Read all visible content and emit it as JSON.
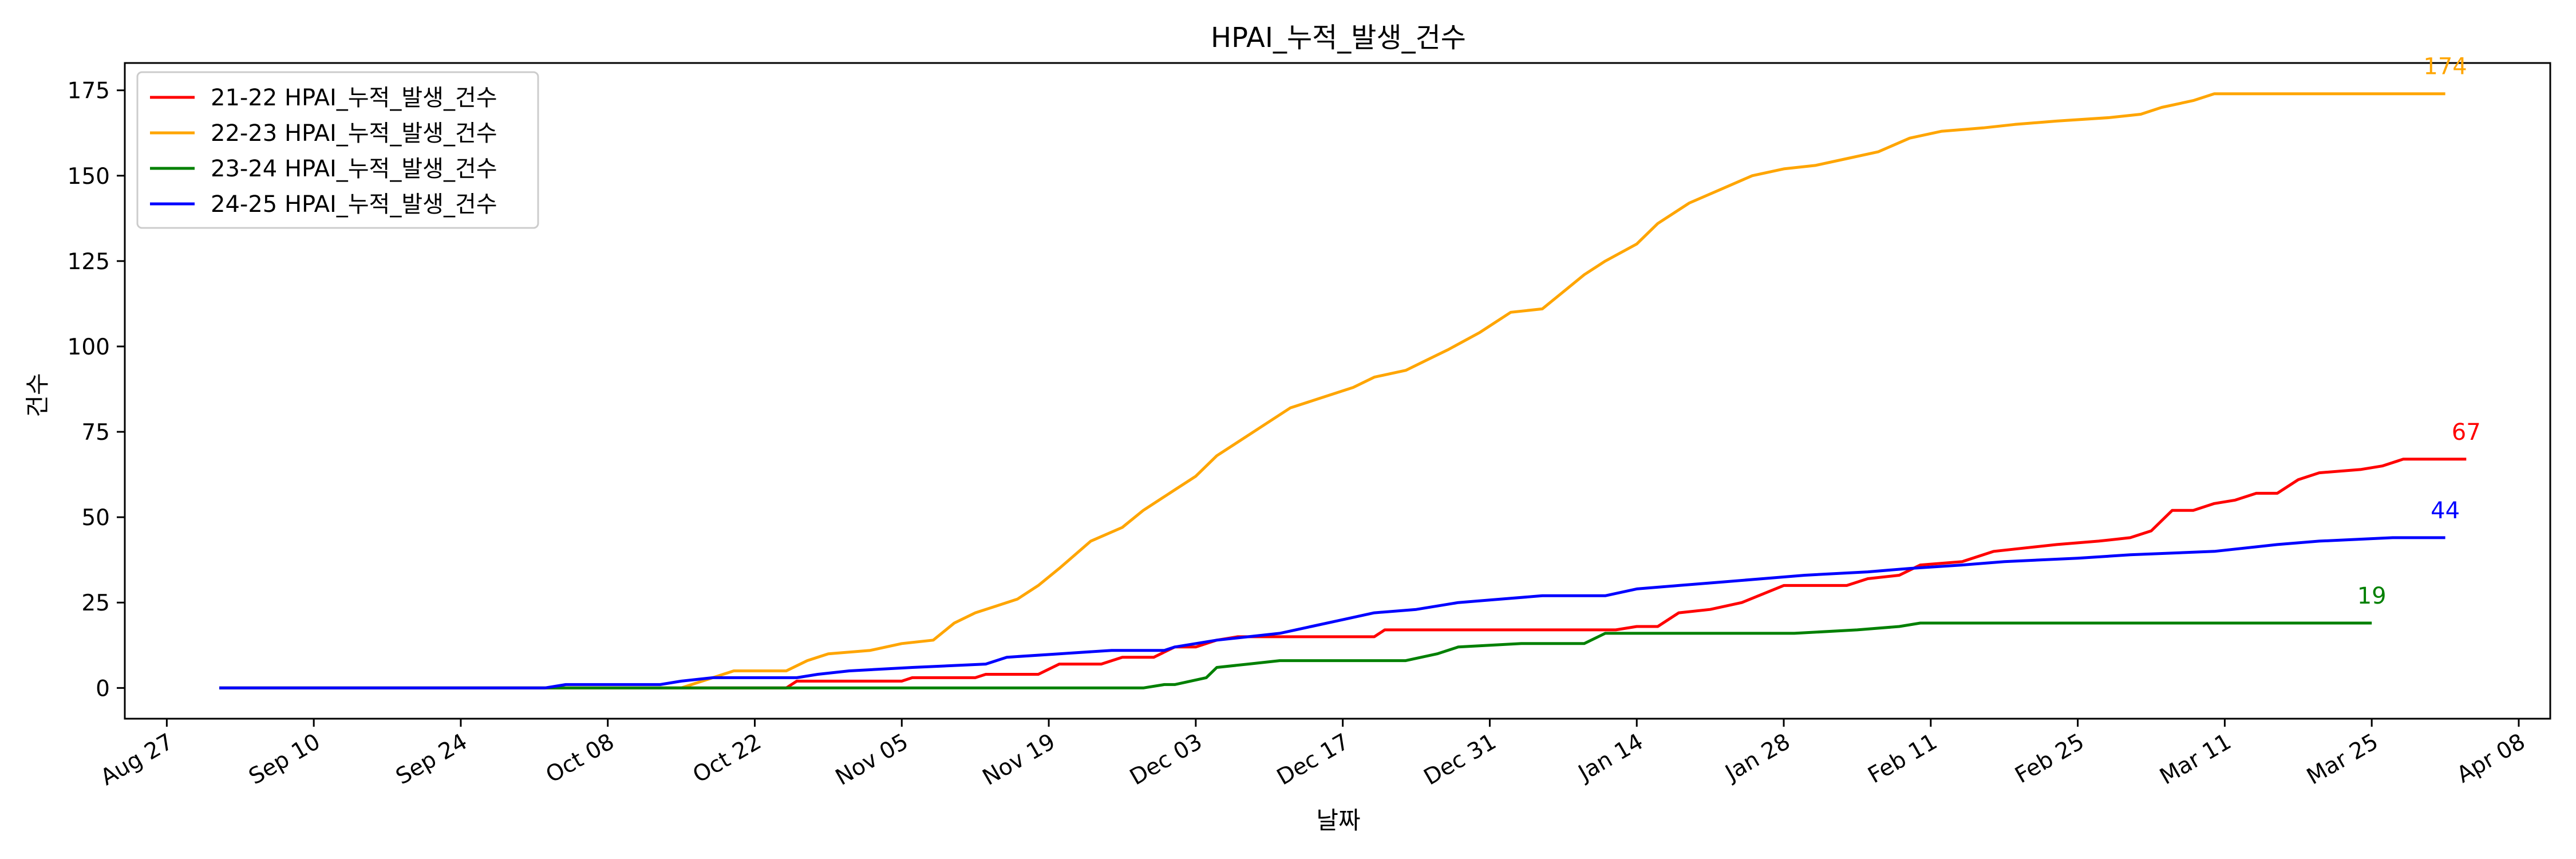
{
  "chart_data": {
    "type": "line",
    "title": "HPAI_누적_발생_건수",
    "xlabel": "날짜",
    "ylabel": "건수",
    "xlim": [
      "2024-08-23",
      "2025-04-11"
    ],
    "ylim": [
      -9,
      183
    ],
    "grid": false,
    "legend_position": "upper-left",
    "x_ticks": [
      {
        "date": "2024-08-27",
        "label": "Aug 27"
      },
      {
        "date": "2024-09-10",
        "label": "Sep 10"
      },
      {
        "date": "2024-09-24",
        "label": "Sep 24"
      },
      {
        "date": "2024-10-08",
        "label": "Oct 08"
      },
      {
        "date": "2024-10-22",
        "label": "Oct 22"
      },
      {
        "date": "2024-11-05",
        "label": "Nov 05"
      },
      {
        "date": "2024-11-19",
        "label": "Nov 19"
      },
      {
        "date": "2024-12-03",
        "label": "Dec 03"
      },
      {
        "date": "2024-12-17",
        "label": "Dec 17"
      },
      {
        "date": "2024-12-31",
        "label": "Dec 31"
      },
      {
        "date": "2025-01-14",
        "label": "Jan 14"
      },
      {
        "date": "2025-01-28",
        "label": "Jan 28"
      },
      {
        "date": "2025-02-11",
        "label": "Feb 11"
      },
      {
        "date": "2025-02-25",
        "label": "Feb 25"
      },
      {
        "date": "2025-03-11",
        "label": "Mar 11"
      },
      {
        "date": "2025-03-25",
        "label": "Mar 25"
      },
      {
        "date": "2025-04-08",
        "label": "Apr 08"
      }
    ],
    "y_ticks": [
      0,
      25,
      50,
      75,
      100,
      125,
      150,
      175
    ],
    "series": [
      {
        "name": "21-22 HPAI_누적_발생_건수",
        "color": "#ff0000",
        "end_label": "67",
        "points": [
          [
            "2024-09-01",
            0
          ],
          [
            "2024-10-25",
            0
          ],
          [
            "2024-10-26",
            2
          ],
          [
            "2024-11-05",
            2
          ],
          [
            "2024-11-06",
            3
          ],
          [
            "2024-11-12",
            3
          ],
          [
            "2024-11-13",
            4
          ],
          [
            "2024-11-18",
            4
          ],
          [
            "2024-11-20",
            7
          ],
          [
            "2024-11-24",
            7
          ],
          [
            "2024-11-26",
            9
          ],
          [
            "2024-11-29",
            9
          ],
          [
            "2024-12-01",
            12
          ],
          [
            "2024-12-03",
            12
          ],
          [
            "2024-12-05",
            14
          ],
          [
            "2024-12-07",
            15
          ],
          [
            "2024-12-20",
            15
          ],
          [
            "2024-12-21",
            17
          ],
          [
            "2025-01-12",
            17
          ],
          [
            "2025-01-14",
            18
          ],
          [
            "2025-01-16",
            18
          ],
          [
            "2025-01-18",
            22
          ],
          [
            "2025-01-21",
            23
          ],
          [
            "2025-01-24",
            25
          ],
          [
            "2025-01-28",
            30
          ],
          [
            "2025-02-03",
            30
          ],
          [
            "2025-02-05",
            32
          ],
          [
            "2025-02-08",
            33
          ],
          [
            "2025-02-10",
            36
          ],
          [
            "2025-02-14",
            37
          ],
          [
            "2025-02-17",
            40
          ],
          [
            "2025-02-20",
            41
          ],
          [
            "2025-02-23",
            42
          ],
          [
            "2025-02-27",
            43
          ],
          [
            "2025-03-02",
            44
          ],
          [
            "2025-03-04",
            46
          ],
          [
            "2025-03-06",
            52
          ],
          [
            "2025-03-08",
            52
          ],
          [
            "2025-03-10",
            54
          ],
          [
            "2025-03-12",
            55
          ],
          [
            "2025-03-14",
            57
          ],
          [
            "2025-03-16",
            57
          ],
          [
            "2025-03-18",
            61
          ],
          [
            "2025-03-20",
            63
          ],
          [
            "2025-03-24",
            64
          ],
          [
            "2025-03-26",
            65
          ],
          [
            "2025-03-28",
            67
          ],
          [
            "2025-04-03",
            67
          ]
        ]
      },
      {
        "name": "22-23 HPAI_누적_발생_건수",
        "color": "#ffa500",
        "end_label": "174",
        "points": [
          [
            "2024-09-01",
            0
          ],
          [
            "2024-10-15",
            0
          ],
          [
            "2024-10-18",
            3
          ],
          [
            "2024-10-20",
            5
          ],
          [
            "2024-10-25",
            5
          ],
          [
            "2024-10-27",
            8
          ],
          [
            "2024-10-29",
            10
          ],
          [
            "2024-11-02",
            11
          ],
          [
            "2024-11-05",
            13
          ],
          [
            "2024-11-08",
            14
          ],
          [
            "2024-11-10",
            19
          ],
          [
            "2024-11-12",
            22
          ],
          [
            "2024-11-14",
            24
          ],
          [
            "2024-11-16",
            26
          ],
          [
            "2024-11-18",
            30
          ],
          [
            "2024-11-20",
            35
          ],
          [
            "2024-11-23",
            43
          ],
          [
            "2024-11-26",
            47
          ],
          [
            "2024-11-28",
            52
          ],
          [
            "2024-12-01",
            58
          ],
          [
            "2024-12-03",
            62
          ],
          [
            "2024-12-05",
            68
          ],
          [
            "2024-12-07",
            72
          ],
          [
            "2024-12-10",
            78
          ],
          [
            "2024-12-12",
            82
          ],
          [
            "2024-12-15",
            85
          ],
          [
            "2024-12-18",
            88
          ],
          [
            "2024-12-20",
            91
          ],
          [
            "2024-12-23",
            93
          ],
          [
            "2024-12-25",
            96
          ],
          [
            "2024-12-27",
            99
          ],
          [
            "2024-12-30",
            104
          ],
          [
            "2025-01-02",
            110
          ],
          [
            "2025-01-05",
            111
          ],
          [
            "2025-01-07",
            116
          ],
          [
            "2025-01-09",
            121
          ],
          [
            "2025-01-11",
            125
          ],
          [
            "2025-01-14",
            130
          ],
          [
            "2025-01-16",
            136
          ],
          [
            "2025-01-19",
            142
          ],
          [
            "2025-01-22",
            146
          ],
          [
            "2025-01-25",
            150
          ],
          [
            "2025-01-28",
            152
          ],
          [
            "2025-01-31",
            153
          ],
          [
            "2025-02-03",
            155
          ],
          [
            "2025-02-06",
            157
          ],
          [
            "2025-02-09",
            161
          ],
          [
            "2025-02-12",
            163
          ],
          [
            "2025-02-16",
            164
          ],
          [
            "2025-02-19",
            165
          ],
          [
            "2025-02-23",
            166
          ],
          [
            "2025-02-28",
            167
          ],
          [
            "2025-03-03",
            168
          ],
          [
            "2025-03-05",
            170
          ],
          [
            "2025-03-08",
            172
          ],
          [
            "2025-03-10",
            174
          ],
          [
            "2025-04-01",
            174
          ]
        ]
      },
      {
        "name": "23-24 HPAI_누적_발생_건수",
        "color": "#008000",
        "end_label": "19",
        "points": [
          [
            "2024-09-01",
            0
          ],
          [
            "2024-11-28",
            0
          ],
          [
            "2024-11-30",
            1
          ],
          [
            "2024-12-01",
            1
          ],
          [
            "2024-12-04",
            3
          ],
          [
            "2024-12-05",
            6
          ],
          [
            "2024-12-08",
            7
          ],
          [
            "2024-12-11",
            8
          ],
          [
            "2024-12-23",
            8
          ],
          [
            "2024-12-26",
            10
          ],
          [
            "2024-12-28",
            12
          ],
          [
            "2025-01-03",
            13
          ],
          [
            "2025-01-09",
            13
          ],
          [
            "2025-01-11",
            16
          ],
          [
            "2025-01-29",
            16
          ],
          [
            "2025-02-04",
            17
          ],
          [
            "2025-02-08",
            18
          ],
          [
            "2025-02-10",
            19
          ],
          [
            "2025-03-25",
            19
          ]
        ]
      },
      {
        "name": "24-25 HPAI_누적_발생_건수",
        "color": "#0000ff",
        "end_label": "44",
        "points": [
          [
            "2024-09-01",
            0
          ],
          [
            "2024-10-02",
            0
          ],
          [
            "2024-10-04",
            1
          ],
          [
            "2024-10-13",
            1
          ],
          [
            "2024-10-15",
            2
          ],
          [
            "2024-10-18",
            3
          ],
          [
            "2024-10-26",
            3
          ],
          [
            "2024-10-28",
            4
          ],
          [
            "2024-10-31",
            5
          ],
          [
            "2024-11-06",
            6
          ],
          [
            "2024-11-13",
            7
          ],
          [
            "2024-11-15",
            9
          ],
          [
            "2024-11-20",
            10
          ],
          [
            "2024-11-25",
            11
          ],
          [
            "2024-11-30",
            11
          ],
          [
            "2024-12-01",
            12
          ],
          [
            "2024-12-05",
            14
          ],
          [
            "2024-12-08",
            15
          ],
          [
            "2024-12-11",
            16
          ],
          [
            "2024-12-14",
            18
          ],
          [
            "2024-12-17",
            20
          ],
          [
            "2024-12-20",
            22
          ],
          [
            "2024-12-24",
            23
          ],
          [
            "2024-12-28",
            25
          ],
          [
            "2025-01-01",
            26
          ],
          [
            "2025-01-05",
            27
          ],
          [
            "2025-01-11",
            27
          ],
          [
            "2025-01-14",
            29
          ],
          [
            "2025-01-18",
            30
          ],
          [
            "2025-01-22",
            31
          ],
          [
            "2025-01-26",
            32
          ],
          [
            "2025-01-30",
            33
          ],
          [
            "2025-02-05",
            34
          ],
          [
            "2025-02-09",
            35
          ],
          [
            "2025-02-14",
            36
          ],
          [
            "2025-02-18",
            37
          ],
          [
            "2025-02-25",
            38
          ],
          [
            "2025-03-02",
            39
          ],
          [
            "2025-03-10",
            40
          ],
          [
            "2025-03-16",
            42
          ],
          [
            "2025-03-20",
            43
          ],
          [
            "2025-03-27",
            44
          ],
          [
            "2025-04-01",
            44
          ]
        ]
      }
    ]
  }
}
